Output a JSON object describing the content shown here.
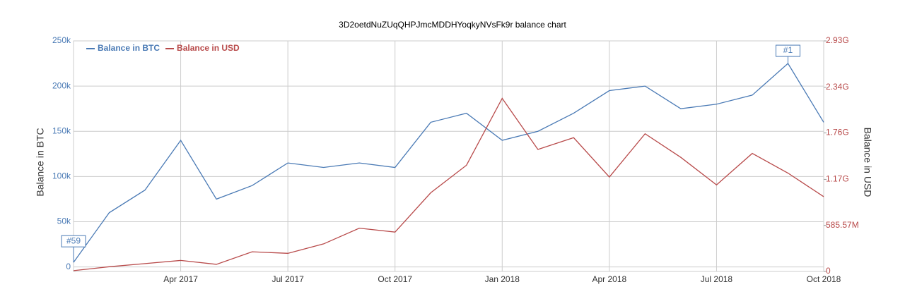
{
  "chart_data": {
    "type": "line",
    "title": "3D2oetdNuZUqQHPJmcMDDHYoqkyNVsFk9r balance chart",
    "y_label": "Balance in BTC",
    "y2_label": "Balance in USD",
    "x": [
      "2017-01",
      "2017-02",
      "2017-03",
      "2017-04",
      "2017-05",
      "2017-06",
      "2017-07",
      "2017-08",
      "2017-09",
      "2017-10",
      "2017-11",
      "2017-12",
      "2018-01",
      "2018-02",
      "2018-03",
      "2018-04",
      "2018-05",
      "2018-06",
      "2018-07",
      "2018-08",
      "2018-09",
      "2018-10"
    ],
    "xlim": [
      "2017-01",
      "2018-10"
    ],
    "xticks": [
      {
        "value": "2017-04",
        "label": "Apr 2017"
      },
      {
        "value": "2017-07",
        "label": "Jul 2017"
      },
      {
        "value": "2017-10",
        "label": "Oct 2017"
      },
      {
        "value": "2018-01",
        "label": "Jan 2018"
      },
      {
        "value": "2018-04",
        "label": "Apr 2018"
      },
      {
        "value": "2018-07",
        "label": "Jul 2018"
      },
      {
        "value": "2018-10",
        "label": "Oct 2018"
      }
    ],
    "ylim": [
      -5000,
      250000
    ],
    "yticks": [
      0,
      {
        "value": 50000,
        "label": "50k"
      },
      {
        "value": 100000,
        "label": "100k"
      },
      {
        "value": 150000,
        "label": "150k"
      },
      {
        "value": 200000,
        "label": "200k"
      },
      {
        "value": 250000,
        "label": "250k"
      }
    ],
    "y2lim": [
      0,
      2930000000
    ],
    "y2ticks": [
      0,
      {
        "value": 585570000,
        "label": "585.57M"
      },
      {
        "value": 1170000000,
        "label": "1.17G"
      },
      {
        "value": 1760000000,
        "label": "1.76G"
      },
      {
        "value": 2340000000,
        "label": "2.34G"
      },
      {
        "value": 2930000000,
        "label": "2.93G"
      }
    ],
    "grid": true,
    "legend": "top-left",
    "series": [
      {
        "name": "Balance in BTC",
        "color": "#4a7ab5",
        "values": [
          5000,
          60000,
          85000,
          140000,
          75000,
          90000,
          115000,
          110000,
          115000,
          110000,
          160000,
          170000,
          140000,
          150000,
          170000,
          195000,
          200000,
          175000,
          180000,
          190000,
          225000,
          160000
        ]
      },
      {
        "name": "Balance in USD",
        "color": "#b84a4a",
        "axis": "y2",
        "values": [
          10000000,
          60000000,
          100000000,
          140000000,
          90000000,
          250000000,
          230000000,
          350000000,
          550000000,
          500000000,
          1000000000,
          1350000000,
          2200000000,
          1550000000,
          1700000000,
          1200000000,
          1750000000,
          1450000000,
          1100000000,
          1500000000,
          1250000000,
          950000000
        ]
      }
    ],
    "annotations": [
      {
        "label": "#59",
        "x": "2017-01"
      },
      {
        "label": "#1",
        "x": "2018-09"
      }
    ]
  }
}
